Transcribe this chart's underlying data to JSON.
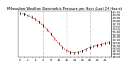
{
  "title": "Milwaukee Weather Barometric Pressure per Hour (Last 24 Hours)",
  "hours": [
    0,
    1,
    2,
    3,
    4,
    5,
    6,
    7,
    8,
    9,
    10,
    11,
    12,
    13,
    14,
    15,
    16,
    17,
    18,
    19,
    20,
    21,
    22,
    23
  ],
  "pressure": [
    30.05,
    30.02,
    29.97,
    29.91,
    29.83,
    29.73,
    29.61,
    29.47,
    29.31,
    29.14,
    28.97,
    28.83,
    28.72,
    28.65,
    28.63,
    28.65,
    28.7,
    28.76,
    28.82,
    28.87,
    28.91,
    28.94,
    28.97,
    29.0
  ],
  "line_color": "#ff0000",
  "marker_color": "#000000",
  "bg_color": "#ffffff",
  "grid_color": "#888888",
  "title_color": "#000000",
  "ylim_min": 28.5,
  "ylim_max": 30.15,
  "ytick_interval": 0.1,
  "title_fontsize": 3.5,
  "tick_fontsize": 2.8,
  "grid_hours": [
    6,
    12,
    18
  ],
  "xtick_every": 2
}
